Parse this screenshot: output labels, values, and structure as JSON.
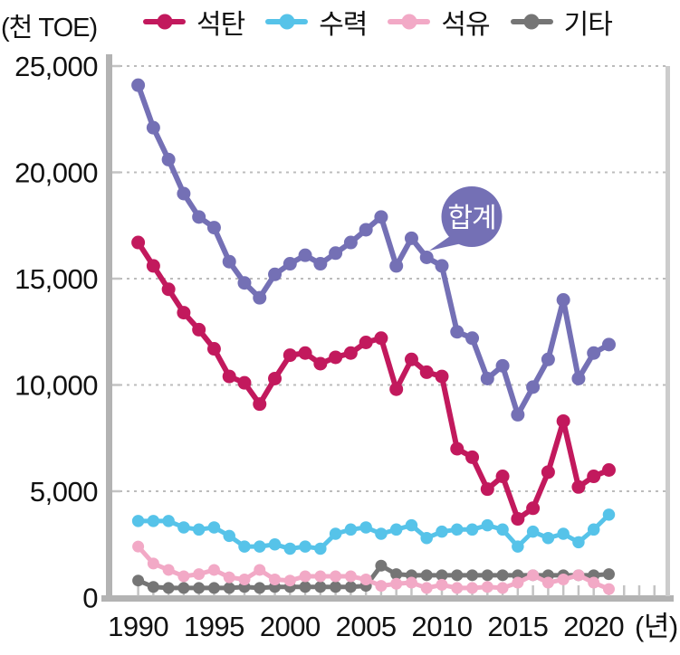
{
  "header": {
    "unit_label": "(천 TOE)"
  },
  "chart_data": {
    "type": "line",
    "title": "",
    "unit": "천 TOE",
    "x_axis_label": "(년)",
    "grid": "horizontal dashed",
    "legend_position": "top",
    "ylim": [
      0,
      25000
    ],
    "y_ticks": [
      0,
      5000,
      10000,
      15000,
      20000,
      25000
    ],
    "y_tick_labels": [
      "0",
      "5,000",
      "10,000",
      "15,000",
      "20,000",
      "25,000"
    ],
    "x_tick_years": [
      1990,
      1995,
      2000,
      2005,
      2010,
      2015,
      2020
    ],
    "x_tick_labels": [
      "1990",
      "1995",
      "2000",
      "2005",
      "2010",
      "2015",
      "2020"
    ],
    "x": [
      1990,
      1991,
      1992,
      1993,
      1994,
      1995,
      1996,
      1997,
      1998,
      1999,
      2000,
      2001,
      2002,
      2003,
      2004,
      2005,
      2006,
      2007,
      2008,
      2009,
      2010,
      2011,
      2012,
      2013,
      2014,
      2015,
      2016,
      2017,
      2018,
      2019,
      2020,
      2021
    ],
    "series": [
      {
        "id": "coal",
        "name": "석탄",
        "color": "#c2195d",
        "in_legend": true,
        "values": [
          16700,
          15600,
          14500,
          13400,
          12600,
          11700,
          10400,
          10100,
          9100,
          10300,
          11400,
          11500,
          11000,
          11300,
          11500,
          12000,
          12200,
          9800,
          11200,
          10600,
          10400,
          7000,
          6600,
          5100,
          5700,
          3700,
          4200,
          5900,
          8300,
          5200,
          5700,
          6000
        ]
      },
      {
        "id": "hydro",
        "name": "수력",
        "color": "#56c3e9",
        "in_legend": true,
        "values": [
          3600,
          3600,
          3600,
          3300,
          3200,
          3300,
          2900,
          2400,
          2400,
          2500,
          2300,
          2400,
          2300,
          3000,
          3200,
          3300,
          3000,
          3200,
          3400,
          2800,
          3100,
          3200,
          3200,
          3400,
          3200,
          2400,
          3100,
          2800,
          3000,
          2600,
          3200,
          3900
        ]
      },
      {
        "id": "oil",
        "name": "석유",
        "color": "#f2a9c6",
        "in_legend": true,
        "values": [
          2400,
          1600,
          1300,
          1000,
          1100,
          1300,
          950,
          850,
          1300,
          850,
          800,
          1000,
          1000,
          1000,
          1000,
          850,
          550,
          650,
          700,
          450,
          600,
          450,
          450,
          500,
          450,
          700,
          1050,
          700,
          850,
          1050,
          700,
          400
        ]
      },
      {
        "id": "other",
        "name": "기타",
        "color": "#757575",
        "in_legend": true,
        "values": [
          800,
          500,
          450,
          450,
          450,
          450,
          450,
          500,
          450,
          500,
          500,
          500,
          500,
          500,
          500,
          550,
          1500,
          1100,
          1050,
          1050,
          1050,
          1050,
          1050,
          1050,
          1050,
          1050,
          1050,
          1050,
          1050,
          1050,
          1050,
          1100
        ]
      },
      {
        "id": "total",
        "name": "합계",
        "color": "#7470b5",
        "in_legend": false,
        "values": [
          24100,
          22100,
          20600,
          19000,
          17900,
          17400,
          15800,
          14800,
          14100,
          15200,
          15700,
          16100,
          15700,
          16200,
          16700,
          17300,
          17900,
          15600,
          16900,
          16000,
          15600,
          12500,
          12200,
          10300,
          10900,
          8600,
          9900,
          11200,
          14000,
          10300,
          11500,
          11900
        ]
      }
    ],
    "annotation": {
      "text": "합계",
      "series": "total"
    }
  }
}
